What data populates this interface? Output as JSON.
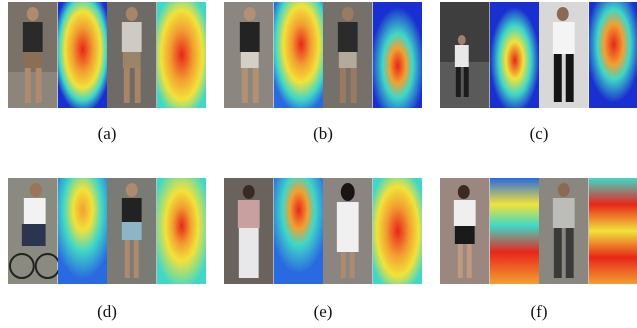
{
  "figure": {
    "panels": [
      {
        "caption": "(a)",
        "strips": [
          "photo",
          "heatmap",
          "photo",
          "heatmap"
        ]
      },
      {
        "caption": "(b)",
        "strips": [
          "photo",
          "heatmap",
          "photo",
          "heatmap"
        ]
      },
      {
        "caption": "(c)",
        "strips": [
          "photo",
          "heatmap",
          "photo",
          "heatmap"
        ]
      },
      {
        "caption": "(d)",
        "strips": [
          "photo",
          "heatmap",
          "photo",
          "heatmap"
        ]
      },
      {
        "caption": "(e)",
        "strips": [
          "photo",
          "heatmap",
          "photo",
          "heatmap"
        ]
      },
      {
        "caption": "(f)",
        "strips": [
          "photo",
          "heatmap",
          "photo",
          "heatmap"
        ]
      }
    ]
  },
  "colors": {
    "heat_low": "#1a2fd0",
    "heat_mid": "#3fd8c8",
    "heat_warm": "#f2e23a",
    "heat_high": "#e8261a"
  }
}
